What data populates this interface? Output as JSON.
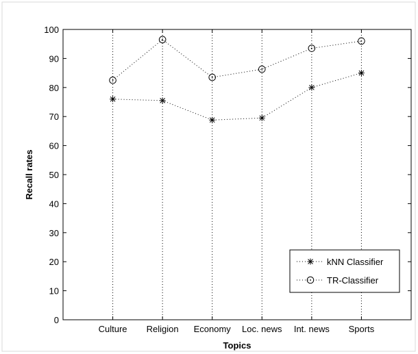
{
  "chart_data": {
    "type": "line",
    "title": "",
    "xlabel": "Topics",
    "ylabel": "Recall rates",
    "categories": [
      "Culture",
      "Religion",
      "Economy",
      "Loc. news",
      "Int. news",
      "Sports"
    ],
    "x_range": [
      0,
      7
    ],
    "ylim": [
      0,
      100
    ],
    "yticks": [
      0,
      10,
      20,
      30,
      40,
      50,
      60,
      70,
      80,
      90,
      100
    ],
    "grid": "vertical dotted at categories",
    "legend_position": "bottom-right",
    "series": [
      {
        "name": "kNN Classifier",
        "marker": "star",
        "line": "dotted",
        "color": "#000000",
        "values": [
          76,
          75.5,
          68.8,
          69.5,
          80,
          85
        ]
      },
      {
        "name": "TR-Classifier",
        "marker": "circle",
        "line": "dotted",
        "color": "#000000",
        "values": [
          82.5,
          96.5,
          83.5,
          86.3,
          93.5,
          96
        ]
      }
    ]
  }
}
